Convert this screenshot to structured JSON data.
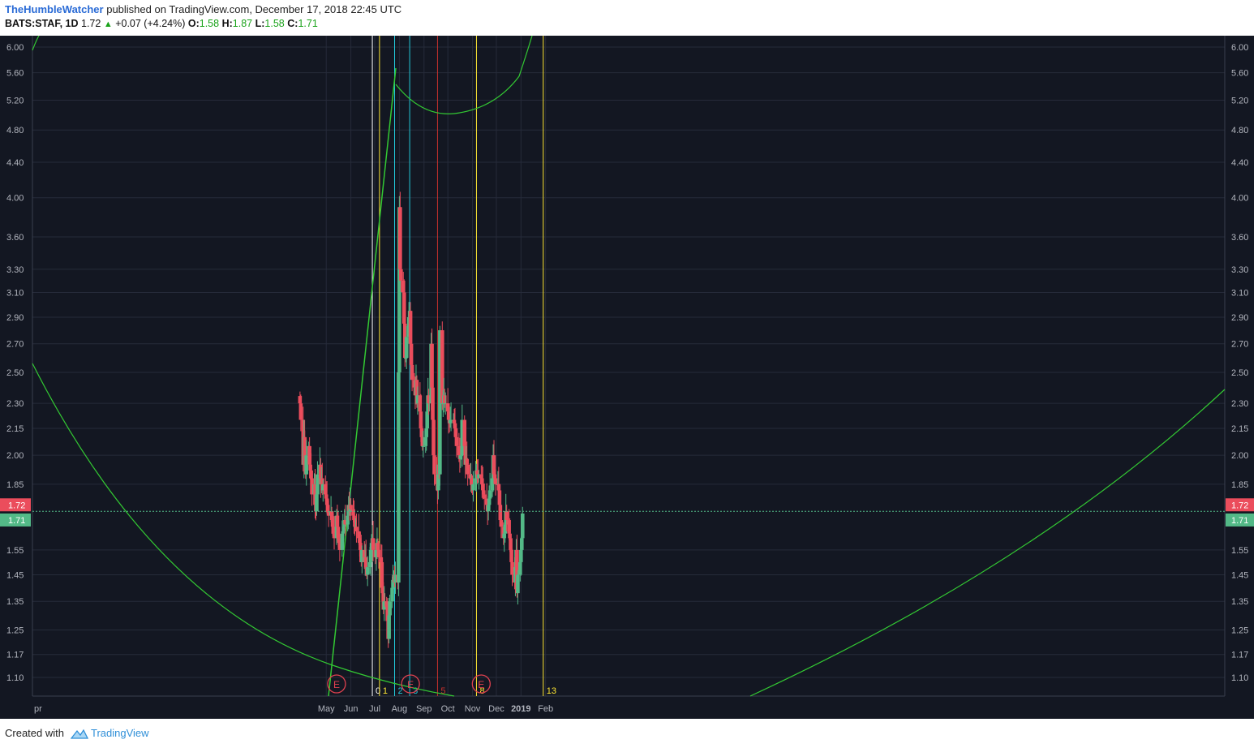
{
  "header": {
    "author": "TheHumbleWatcher",
    "published": "published on TradingView.com, December 17, 2018 22:45 UTC",
    "symbol": "BATS:STAF, 1D",
    "last": "1.72",
    "change": "+0.07 (+4.24%)",
    "o_label": "O:",
    "o_value": "1.58",
    "h_label": "H:",
    "h_value": "1.87",
    "l_label": "L:",
    "l_value": "1.58",
    "c_label": "C:",
    "c_value": "1.71"
  },
  "footer": {
    "created_with": "Created with",
    "brand": "TradingView"
  },
  "colors": {
    "background": "#131722",
    "grid": "#262b3a",
    "up": "#53b987",
    "down": "#eb4d5c",
    "fib_circle": "#33c933",
    "line_white": "#ffffff",
    "line_yellow": "#ffe733",
    "line_cyan": "#22c8d8",
    "line_red": "#c8312d",
    "earnings": "#e0414f"
  },
  "chart_data": {
    "type": "candlestick",
    "symbol": "BATS:STAF",
    "interval": "1D",
    "y_scale": "log",
    "ylim": [
      1.05,
      6.15
    ],
    "y_ticks": [
      "6.00",
      "5.60",
      "5.20",
      "4.80",
      "4.40",
      "4.00",
      "3.60",
      "3.30",
      "3.10",
      "2.90",
      "2.70",
      "2.50",
      "2.30",
      "2.15",
      "2.00",
      "1.85",
      "1.72",
      "1.71",
      "1.55",
      "1.45",
      "1.35",
      "1.25",
      "1.17",
      "1.10"
    ],
    "x_ticks": [
      "pr",
      "May",
      "Jun",
      "Jul",
      "Aug",
      "Sep",
      "Oct",
      "Nov",
      "Dec",
      "2019",
      "Feb"
    ],
    "price_labels": [
      {
        "value": 1.72,
        "text": "1.72",
        "color": "#eb4d5c"
      },
      {
        "value": 1.71,
        "text": "1.71",
        "color": "#53b987"
      }
    ],
    "bars_start": "2018-03-29",
    "series": [
      {
        "name": "close_estimated",
        "values": [
          2.3,
          2.2,
          1.95,
          2.1,
          1.95,
          1.9,
          2.0,
          2.05,
          1.95,
          1.92,
          1.88,
          1.8,
          1.85,
          1.75,
          1.72,
          1.8,
          1.9,
          1.95,
          1.85,
          1.88,
          1.82,
          1.85,
          1.8,
          1.78,
          1.75,
          1.72,
          1.7,
          1.72,
          1.68,
          1.65,
          1.62,
          1.6,
          1.7,
          1.65,
          1.6,
          1.58,
          1.55,
          1.62,
          1.63,
          1.65,
          1.68,
          1.66,
          1.7,
          1.75,
          1.72,
          1.75,
          1.73,
          1.7,
          1.68,
          1.65,
          1.65,
          1.63,
          1.6,
          1.58,
          1.55,
          1.5,
          1.55,
          1.5,
          1.52,
          1.48,
          1.45,
          1.48,
          1.5,
          1.55,
          1.58,
          1.6,
          1.55,
          1.52,
          1.55,
          1.58,
          1.55,
          1.52,
          1.5,
          1.4,
          1.38,
          1.32,
          1.35,
          1.33,
          1.28,
          1.22,
          1.3,
          1.35,
          1.4,
          1.43,
          1.45,
          1.42,
          1.45,
          1.42,
          2.5,
          3.9,
          3.3,
          3.2,
          3.1,
          2.85,
          2.6,
          2.6,
          2.75,
          2.9,
          2.95,
          2.7,
          2.55,
          2.45,
          2.4,
          2.35,
          2.45,
          2.3,
          2.35,
          2.25,
          2.15,
          2.1,
          2.05,
          2.05,
          2.1,
          2.15,
          2.25,
          2.35,
          2.3,
          2.7,
          2.4,
          2.2,
          2.0,
          1.9,
          1.85,
          1.82,
          1.95,
          1.9,
          2.8,
          2.3,
          2.3,
          2.35,
          2.3,
          2.3,
          2.25,
          2.2,
          2.18,
          2.2,
          2.2,
          2.2,
          2.18,
          2.15,
          2.1,
          2.05,
          2.0,
          1.98,
          2.0,
          2.0,
          2.2,
          2.05,
          1.95,
          1.98,
          1.95,
          1.9,
          1.88,
          1.88,
          1.85,
          1.82,
          1.85,
          1.88,
          1.92,
          1.9,
          1.88,
          1.9,
          1.88,
          1.85,
          1.82,
          1.8,
          1.78,
          1.75,
          1.72,
          1.75,
          1.78,
          1.82,
          1.88,
          2.0,
          1.9,
          1.88,
          1.85,
          1.85,
          1.82,
          1.75,
          1.68,
          1.65,
          1.6,
          1.62,
          1.66,
          1.72,
          1.68,
          1.62,
          1.6,
          1.55,
          1.5,
          1.45,
          1.42,
          1.48,
          1.55,
          1.38,
          1.45,
          1.5,
          1.55,
          1.6,
          1.71
        ]
      }
    ],
    "fib_time_zones": [
      {
        "label": "0",
        "color": "#ffffff"
      },
      {
        "label": "1",
        "color": "#ffe733"
      },
      {
        "label": "2",
        "color": "#22c8d8"
      },
      {
        "label": "3",
        "color": "#22c8d8"
      },
      {
        "label": "5",
        "color": "#c8312d"
      },
      {
        "label": "8",
        "color": "#ffe733"
      },
      {
        "label": "13",
        "color": "#ffe733"
      }
    ],
    "earnings_markers": [
      {
        "label": "E"
      },
      {
        "label": "E"
      },
      {
        "label": "E"
      }
    ]
  }
}
